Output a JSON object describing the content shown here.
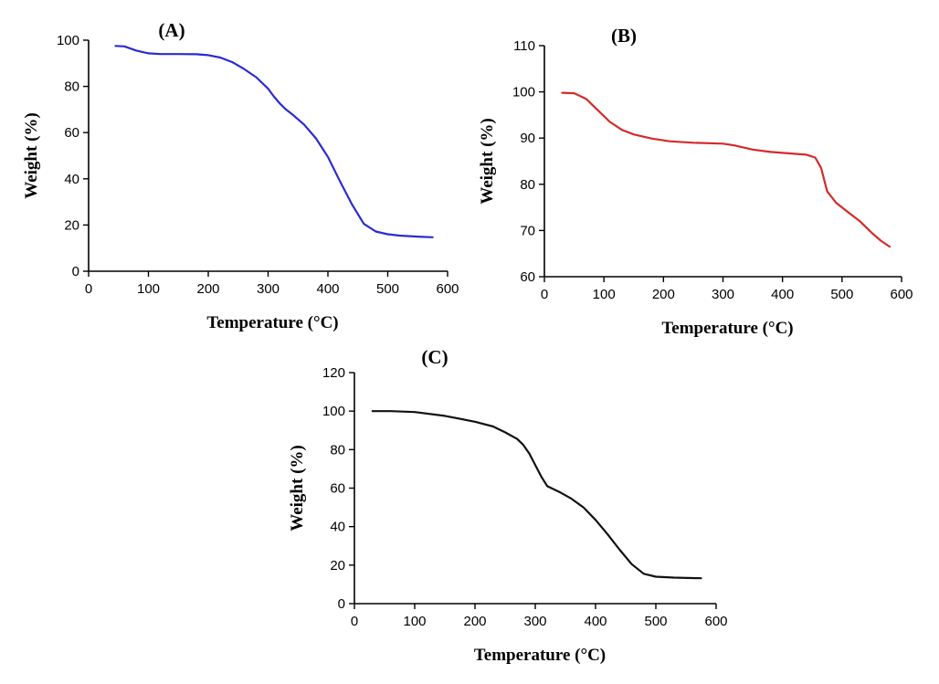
{
  "chart_data": [
    {
      "type": "line",
      "panel": "(A)",
      "title": "",
      "xlabel": "Temperature (°C)",
      "ylabel": "Weight (%)",
      "xlim": [
        0,
        600
      ],
      "ylim": [
        0,
        100
      ],
      "xticks": [
        0,
        100,
        200,
        300,
        400,
        500,
        600
      ],
      "yticks": [
        0,
        20,
        40,
        60,
        80,
        100
      ],
      "grid": false,
      "series": [
        {
          "name": "A",
          "color": "#2b2bd0",
          "x": [
            45,
            60,
            80,
            100,
            120,
            150,
            180,
            200,
            220,
            240,
            260,
            280,
            300,
            310,
            320,
            330,
            340,
            360,
            380,
            400,
            420,
            440,
            460,
            480,
            500,
            520,
            550,
            575
          ],
          "y": [
            97.5,
            97.3,
            95.5,
            94.3,
            94.0,
            94.0,
            93.9,
            93.5,
            92.5,
            90.5,
            87.5,
            84.0,
            79.0,
            75.5,
            72.5,
            70.0,
            68.0,
            63.5,
            57.5,
            49.5,
            39.0,
            29.0,
            20.5,
            17.2,
            16.0,
            15.4,
            15.0,
            14.7
          ]
        }
      ]
    },
    {
      "type": "line",
      "panel": "(B)",
      "title": "",
      "xlabel": "Temperature (°C)",
      "ylabel": "Weight (%)",
      "xlim": [
        0,
        600
      ],
      "ylim": [
        60,
        110
      ],
      "xticks": [
        0,
        100,
        200,
        300,
        400,
        500,
        600
      ],
      "yticks": [
        60,
        70,
        80,
        90,
        100,
        110
      ],
      "grid": false,
      "series": [
        {
          "name": "B",
          "color": "#d42a2a",
          "x": [
            30,
            50,
            70,
            90,
            110,
            130,
            150,
            180,
            210,
            250,
            300,
            320,
            350,
            380,
            410,
            440,
            455,
            465,
            475,
            490,
            510,
            530,
            550,
            565,
            580
          ],
          "y": [
            99.8,
            99.7,
            98.5,
            96.0,
            93.5,
            91.8,
            90.8,
            89.9,
            89.3,
            89.0,
            88.8,
            88.4,
            87.5,
            87.0,
            86.7,
            86.4,
            85.8,
            83.5,
            78.5,
            76.0,
            74.0,
            72.0,
            69.5,
            67.8,
            66.5
          ]
        }
      ]
    },
    {
      "type": "line",
      "panel": "(C)",
      "title": "",
      "xlabel": "Temperature (°C)",
      "ylabel": "Weight (%)",
      "xlim": [
        0,
        600
      ],
      "ylim": [
        0,
        120
      ],
      "xticks": [
        0,
        100,
        200,
        300,
        400,
        500,
        600
      ],
      "yticks": [
        0,
        20,
        40,
        60,
        80,
        100,
        120
      ],
      "grid": false,
      "series": [
        {
          "name": "C",
          "color": "#111111",
          "x": [
            30,
            60,
            100,
            150,
            200,
            230,
            250,
            270,
            280,
            290,
            300,
            310,
            320,
            340,
            360,
            380,
            400,
            420,
            440,
            460,
            480,
            500,
            530,
            575
          ],
          "y": [
            100.0,
            100.0,
            99.5,
            97.5,
            94.5,
            92.0,
            89.0,
            85.5,
            82.5,
            78.0,
            72.0,
            66.0,
            61.0,
            58.0,
            54.5,
            50.0,
            43.5,
            36.0,
            28.0,
            20.5,
            15.5,
            14.0,
            13.5,
            13.2
          ]
        }
      ]
    }
  ]
}
